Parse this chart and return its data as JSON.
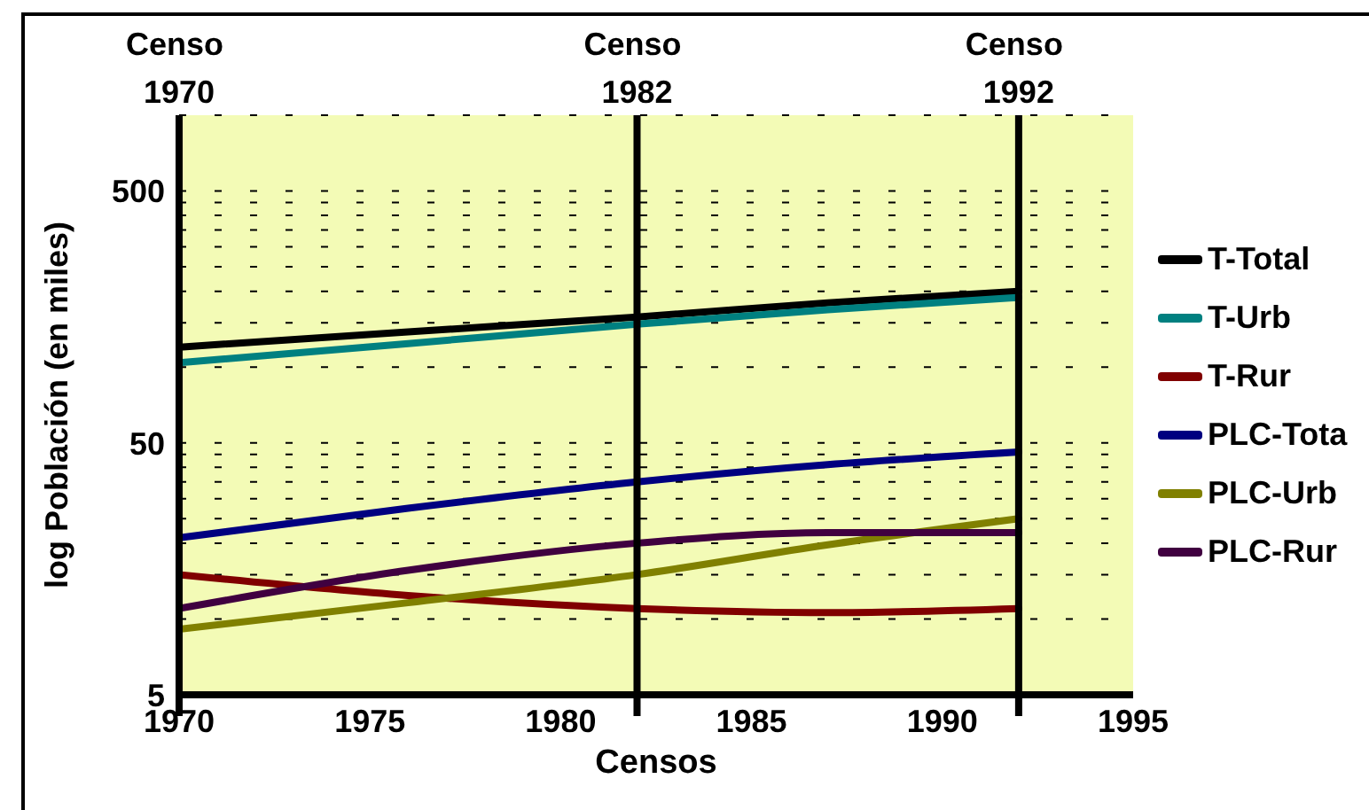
{
  "chart_data": {
    "type": "line",
    "xlabel": "Censos",
    "ylabel": "log Población (en miles)",
    "x": [
      1970,
      1976,
      1982,
      1987,
      1992
    ],
    "series": [
      {
        "name": "T-Total",
        "color": "#000000",
        "values": [
          120,
          138,
          158,
          180,
          200
        ]
      },
      {
        "name": "T-Urb",
        "color": "#008080",
        "values": [
          104,
          124,
          148,
          169,
          189
        ]
      },
      {
        "name": "T-Rur",
        "color": "#800000",
        "values": [
          15,
          12.4,
          11,
          10.6,
          11
        ]
      },
      {
        "name": "PLC-Tota",
        "color": "#000080",
        "values": [
          21,
          27.5,
          35,
          41,
          46
        ]
      },
      {
        "name": "PLC-Urb",
        "color": "#808000",
        "values": [
          9.1,
          11.6,
          15,
          19.7,
          25
        ]
      },
      {
        "name": "PLC-Rur",
        "color": "#400040",
        "values": [
          11,
          15.6,
          20,
          22,
          22
        ]
      }
    ],
    "xlim": [
      1970,
      1995
    ],
    "xticks": [
      1970,
      1975,
      1980,
      1985,
      1990,
      1995
    ],
    "ylim": [
      5,
      1000
    ],
    "yticks": [
      5,
      {
        "value": 10,
        "label": null
      },
      {
        "value": 15,
        "label": null
      },
      {
        "value": 20,
        "label": null
      },
      {
        "value": 25,
        "label": null
      },
      {
        "value": 30,
        "label": null
      },
      {
        "value": 35,
        "label": null
      },
      {
        "value": 40,
        "label": null
      },
      {
        "value": 45,
        "label": null
      },
      50,
      {
        "value": 100,
        "label": null
      },
      {
        "value": 150,
        "label": null
      },
      {
        "value": 200,
        "label": null
      },
      {
        "value": 250,
        "label": null
      },
      {
        "value": 300,
        "label": null
      },
      {
        "value": 350,
        "label": null
      },
      {
        "value": 400,
        "label": null
      },
      {
        "value": 450,
        "label": null
      },
      500,
      {
        "value": 1000,
        "label": null
      }
    ],
    "log": true,
    "grid": "y",
    "legend": "right",
    "marker": "none",
    "line_style": "solid",
    "ref_lines": [
      {
        "axis": "x",
        "value": 1970,
        "label": "Censo 1970",
        "color": "#000000"
      },
      {
        "axis": "x",
        "value": 1982,
        "label": "Censo 1982",
        "color": "#000000"
      },
      {
        "axis": "x",
        "value": 1992,
        "label": "Censo 1992",
        "color": "#000000"
      }
    ]
  }
}
